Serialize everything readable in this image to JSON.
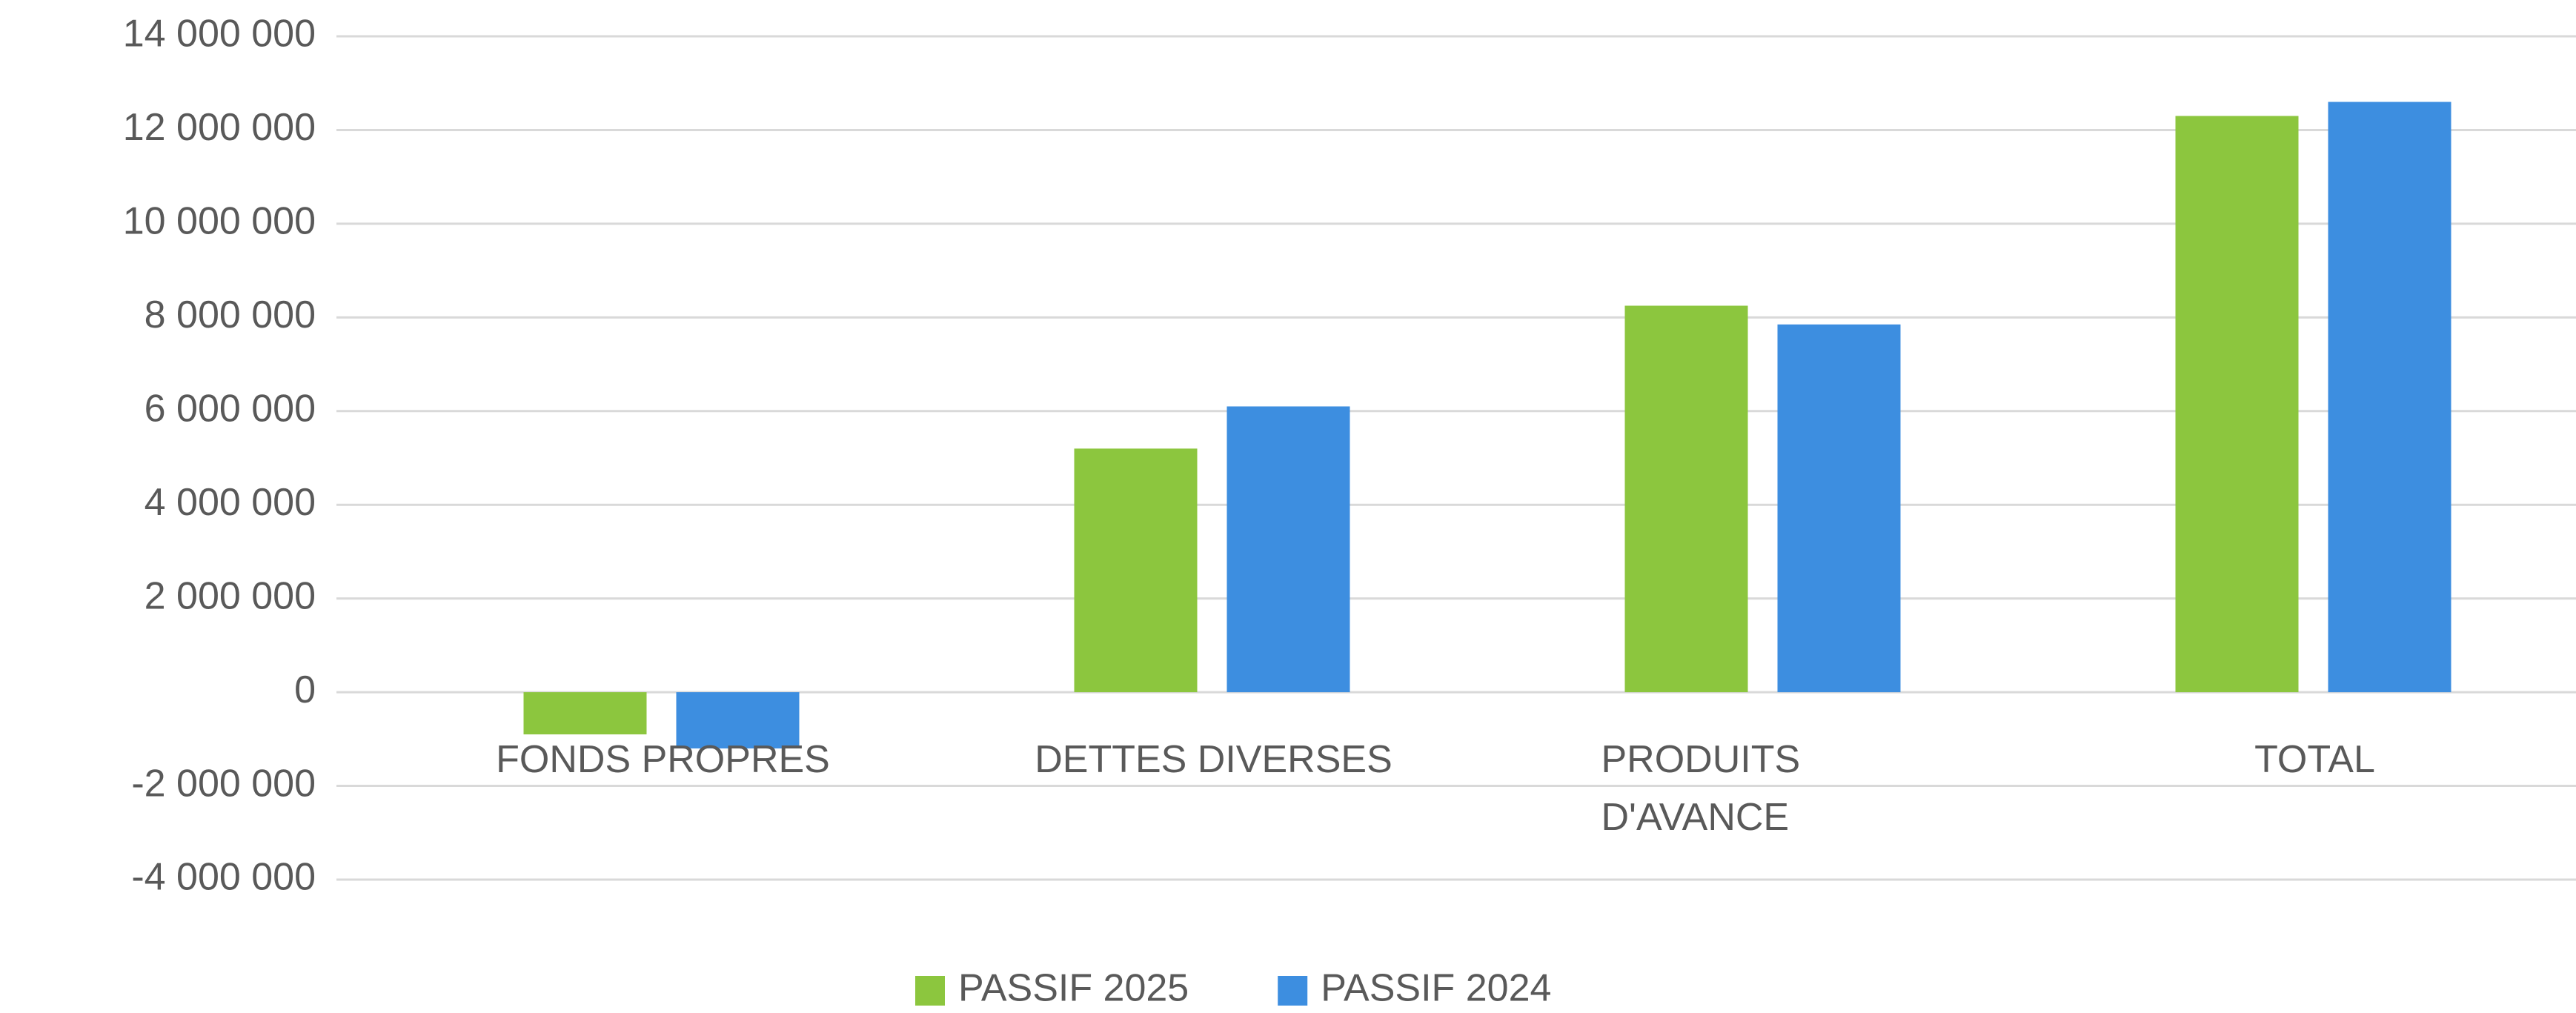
{
  "chart_data": {
    "type": "bar",
    "categories": [
      "FONDS PROPRES",
      "DETTES DIVERSES",
      "PRODUITS D'AVANCE",
      "TOTAL"
    ],
    "series": [
      {
        "name": "PASSIF 2025",
        "color": "#8cc63e",
        "values": [
          -900000,
          5200000,
          8250000,
          12300000
        ]
      },
      {
        "name": "PASSIF 2024",
        "color": "#3d8ee0",
        "values": [
          -1200000,
          6100000,
          7850000,
          12600000
        ]
      }
    ],
    "ylim": [
      -4000000,
      14000000
    ],
    "yticks": [
      {
        "value": -4000000,
        "label": "-4 000 000"
      },
      {
        "value": -2000000,
        "label": "-2 000 000"
      },
      0,
      {
        "value": 2000000,
        "label": "2 000 000"
      },
      {
        "value": 4000000,
        "label": "4 000 000"
      },
      {
        "value": 6000000,
        "label": "6 000 000"
      },
      {
        "value": 8000000,
        "label": "8 000 000"
      },
      {
        "value": 10000000,
        "label": "10 000 000"
      },
      {
        "value": 12000000,
        "label": "12 000 000"
      },
      {
        "value": 14000000,
        "label": "14 000 000"
      }
    ],
    "grid": true,
    "legend": "bottom"
  }
}
